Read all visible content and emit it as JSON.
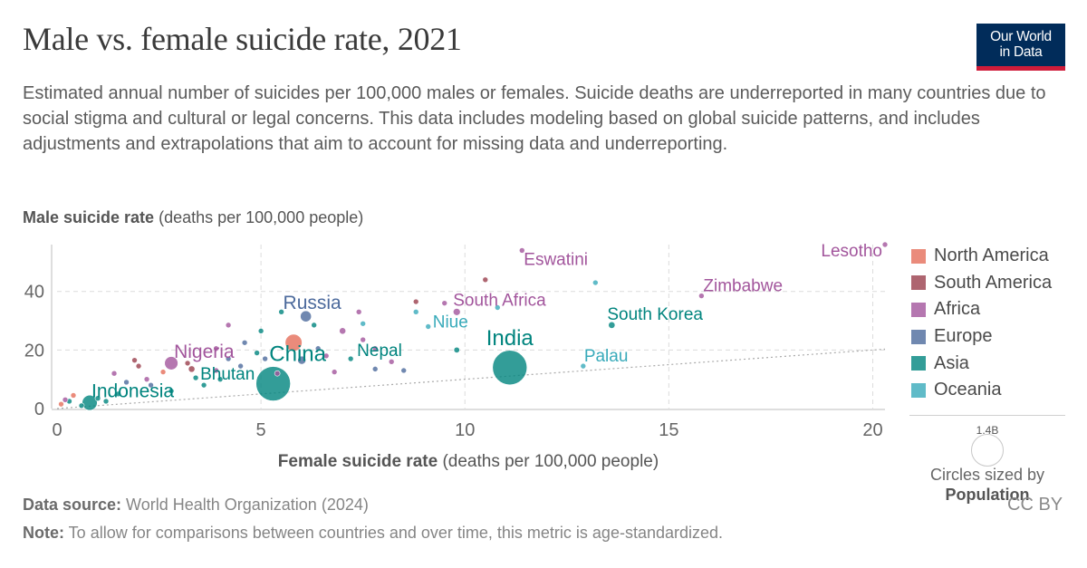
{
  "header": {
    "title": "Male vs. female suicide rate, 2021",
    "subtitle": "Estimated annual number of suicides per 100,000 males or females. Suicide deaths are underreported in many countries due to social stigma and cultural or legal concerns. This data includes modeling based on global suicide patterns, and includes adjustments and extrapolations that aim to account for missing data and underreporting.",
    "logo_line1": "Our World",
    "logo_line2": "in Data"
  },
  "footer": {
    "source_label": "Data source:",
    "source_text": " World Health Organization (2024)",
    "note_label": "Note:",
    "note_text": " To allow for comparisons between countries and over time, this metric is age-standardized.",
    "license": "CC BY"
  },
  "size_legend": {
    "value": "1.4B",
    "caption": "Circles sized by",
    "variable": "Population"
  },
  "chart_data": {
    "type": "scatter",
    "ylabel_bold": "Male suicide rate",
    "ylabel_rest": " (deaths per 100,000 people)",
    "xlabel_bold": "Female suicide rate",
    "xlabel_rest": " (deaths per 100,000 people)",
    "xlim": [
      0,
      20.3
    ],
    "ylim": [
      0,
      56
    ],
    "x_ticks": [
      0,
      5,
      10,
      15,
      20
    ],
    "y_ticks": [
      0,
      20,
      40
    ],
    "grid": true,
    "reference_line": "y = x (dotted)",
    "legend_position": "right",
    "series": [
      {
        "name": "North America",
        "color": "#e56e5a"
      },
      {
        "name": "South America",
        "color": "#9a3f4c"
      },
      {
        "name": "Africa",
        "color": "#a2559c"
      },
      {
        "name": "Europe",
        "color": "#4c6a9c"
      },
      {
        "name": "Asia",
        "color": "#00847e"
      },
      {
        "name": "Oceania",
        "color": "#38aaba"
      }
    ],
    "points": [
      {
        "x": 11.1,
        "y": 14,
        "region": "Asia",
        "pop": 1.4,
        "label": "India"
      },
      {
        "x": 5.3,
        "y": 8.5,
        "region": "Asia",
        "pop": 1.4,
        "label": "China"
      },
      {
        "x": 0.8,
        "y": 2,
        "region": "Asia",
        "pop": 0.27,
        "label": "Indonesia"
      },
      {
        "x": 6.1,
        "y": 31.5,
        "region": "Europe",
        "pop": 0.144,
        "label": "Russia"
      },
      {
        "x": 2.8,
        "y": 15.5,
        "region": "Africa",
        "pop": 0.21,
        "label": "Nigeria"
      },
      {
        "x": 3.4,
        "y": 10.5,
        "region": "Asia",
        "pop": 0.0008,
        "label": "Bhutan"
      },
      {
        "x": 7.2,
        "y": 17,
        "region": "Asia",
        "pop": 0.03,
        "label": "Nepal"
      },
      {
        "x": 9.1,
        "y": 28,
        "region": "Oceania",
        "pop": 0.0016,
        "label": "Niue"
      },
      {
        "x": 9.8,
        "y": 33,
        "region": "Africa",
        "pop": 0.06,
        "label": "South Africa"
      },
      {
        "x": 11.4,
        "y": 54,
        "region": "Africa",
        "pop": 0.0012,
        "label": "Eswatini"
      },
      {
        "x": 15.8,
        "y": 38.5,
        "region": "Africa",
        "pop": 0.015,
        "label": "Zimbabwe"
      },
      {
        "x": 13.6,
        "y": 28.5,
        "region": "Asia",
        "pop": 0.052,
        "label": "South Korea"
      },
      {
        "x": 12.9,
        "y": 14.5,
        "region": "Oceania",
        "pop": 0.0008,
        "label": "Palau"
      },
      {
        "x": 20.3,
        "y": 56,
        "region": "Africa",
        "pop": 0.0023,
        "label": "Lesotho"
      },
      {
        "x": 5.8,
        "y": 22.5,
        "region": "North America",
        "pop": 0.335,
        "label": ""
      },
      {
        "x": 9.8,
        "y": 20,
        "region": "Asia",
        "pop": 0.04,
        "label": ""
      },
      {
        "x": 10.5,
        "y": 44,
        "region": "South America",
        "pop": 0.0008,
        "label": ""
      },
      {
        "x": 13.2,
        "y": 43,
        "region": "Oceania",
        "pop": 0.0005,
        "label": ""
      },
      {
        "x": 8.8,
        "y": 36.5,
        "region": "South America",
        "pop": 0.0008,
        "label": ""
      },
      {
        "x": 8.8,
        "y": 33,
        "region": "Oceania",
        "pop": 0.0005,
        "label": ""
      },
      {
        "x": 9.5,
        "y": 36,
        "region": "Africa",
        "pop": 0.003,
        "label": ""
      },
      {
        "x": 10.8,
        "y": 34.5,
        "region": "Oceania",
        "pop": 0.0003,
        "label": ""
      },
      {
        "x": 7.5,
        "y": 29,
        "region": "Oceania",
        "pop": 0.0003,
        "label": ""
      },
      {
        "x": 7.4,
        "y": 33,
        "region": "Africa",
        "pop": 0.003,
        "label": ""
      },
      {
        "x": 7.0,
        "y": 26.5,
        "region": "Africa",
        "pop": 0.05,
        "label": ""
      },
      {
        "x": 5.5,
        "y": 33,
        "region": "Asia",
        "pop": 0.003,
        "label": ""
      },
      {
        "x": 5.0,
        "y": 26.5,
        "region": "Asia",
        "pop": 0.01,
        "label": ""
      },
      {
        "x": 4.2,
        "y": 28.5,
        "region": "Africa",
        "pop": 0.005,
        "label": ""
      },
      {
        "x": 4.6,
        "y": 22.5,
        "region": "Europe",
        "pop": 0.005,
        "label": ""
      },
      {
        "x": 6.4,
        "y": 20.5,
        "region": "Europe",
        "pop": 0.03,
        "label": ""
      },
      {
        "x": 6.6,
        "y": 18,
        "region": "Africa",
        "pop": 0.03,
        "label": ""
      },
      {
        "x": 6.0,
        "y": 16.5,
        "region": "Europe",
        "pop": 0.08,
        "label": ""
      },
      {
        "x": 5.1,
        "y": 17,
        "region": "Europe",
        "pop": 0.02,
        "label": ""
      },
      {
        "x": 4.5,
        "y": 14.5,
        "region": "Europe",
        "pop": 0.012,
        "label": ""
      },
      {
        "x": 3.9,
        "y": 13,
        "region": "Africa",
        "pop": 0.02,
        "label": ""
      },
      {
        "x": 4.0,
        "y": 10,
        "region": "Asia",
        "pop": 0.007,
        "label": ""
      },
      {
        "x": 6.8,
        "y": 12.5,
        "region": "Africa",
        "pop": 0.01,
        "label": ""
      },
      {
        "x": 8.2,
        "y": 16,
        "region": "Africa",
        "pop": 0.015,
        "label": ""
      },
      {
        "x": 8.5,
        "y": 13,
        "region": "Europe",
        "pop": 0.003,
        "label": ""
      },
      {
        "x": 7.8,
        "y": 20.5,
        "region": "Africa",
        "pop": 0.02,
        "label": ""
      },
      {
        "x": 7.8,
        "y": 13.5,
        "region": "Europe",
        "pop": 0.003,
        "label": ""
      },
      {
        "x": 3.3,
        "y": 13.5,
        "region": "South America",
        "pop": 0.05,
        "label": ""
      },
      {
        "x": 2.6,
        "y": 12.5,
        "region": "North America",
        "pop": 0.03,
        "label": ""
      },
      {
        "x": 3.2,
        "y": 15.5,
        "region": "South America",
        "pop": 0.002,
        "label": ""
      },
      {
        "x": 2.0,
        "y": 14.5,
        "region": "South America",
        "pop": 0.003,
        "label": ""
      },
      {
        "x": 1.9,
        "y": 16.5,
        "region": "South America",
        "pop": 0.002,
        "label": ""
      },
      {
        "x": 2.2,
        "y": 10,
        "region": "Africa",
        "pop": 0.02,
        "label": ""
      },
      {
        "x": 1.7,
        "y": 9,
        "region": "Europe",
        "pop": 0.01,
        "label": ""
      },
      {
        "x": 1.5,
        "y": 5,
        "region": "Asia",
        "pop": 0.02,
        "label": ""
      },
      {
        "x": 1.0,
        "y": 3.5,
        "region": "Asia",
        "pop": 0.01,
        "label": ""
      },
      {
        "x": 0.4,
        "y": 4.5,
        "region": "North America",
        "pop": 0.01,
        "label": ""
      },
      {
        "x": 0.3,
        "y": 2.5,
        "region": "Asia",
        "pop": 0.03,
        "label": ""
      },
      {
        "x": 0.1,
        "y": 1.5,
        "region": "North America",
        "pop": 0.003,
        "label": ""
      },
      {
        "x": 0.6,
        "y": 1,
        "region": "Asia",
        "pop": 0.003,
        "label": ""
      },
      {
        "x": 0.2,
        "y": 3,
        "region": "Africa",
        "pop": 0.003,
        "label": ""
      },
      {
        "x": 1.2,
        "y": 2.5,
        "region": "Asia",
        "pop": 0.01,
        "label": ""
      },
      {
        "x": 2.8,
        "y": 6,
        "region": "Asia",
        "pop": 0.015,
        "label": ""
      },
      {
        "x": 3.6,
        "y": 8,
        "region": "Asia",
        "pop": 0.02,
        "label": ""
      },
      {
        "x": 1.4,
        "y": 12,
        "region": "Africa",
        "pop": 0.003,
        "label": ""
      },
      {
        "x": 2.3,
        "y": 8,
        "region": "Europe",
        "pop": 0.006,
        "label": ""
      },
      {
        "x": 4.2,
        "y": 17,
        "region": "Europe",
        "pop": 0.01,
        "label": ""
      },
      {
        "x": 5.4,
        "y": 12,
        "region": "Africa",
        "pop": 0.01,
        "label": ""
      },
      {
        "x": 7.5,
        "y": 23.5,
        "region": "Africa",
        "pop": 0.02,
        "label": ""
      },
      {
        "x": 6.3,
        "y": 28.5,
        "region": "Asia",
        "pop": 0.006,
        "label": ""
      },
      {
        "x": 3.9,
        "y": 20.5,
        "region": "Africa",
        "pop": 0.015,
        "label": ""
      },
      {
        "x": 4.9,
        "y": 19,
        "region": "Asia",
        "pop": 0.01,
        "label": ""
      }
    ]
  }
}
